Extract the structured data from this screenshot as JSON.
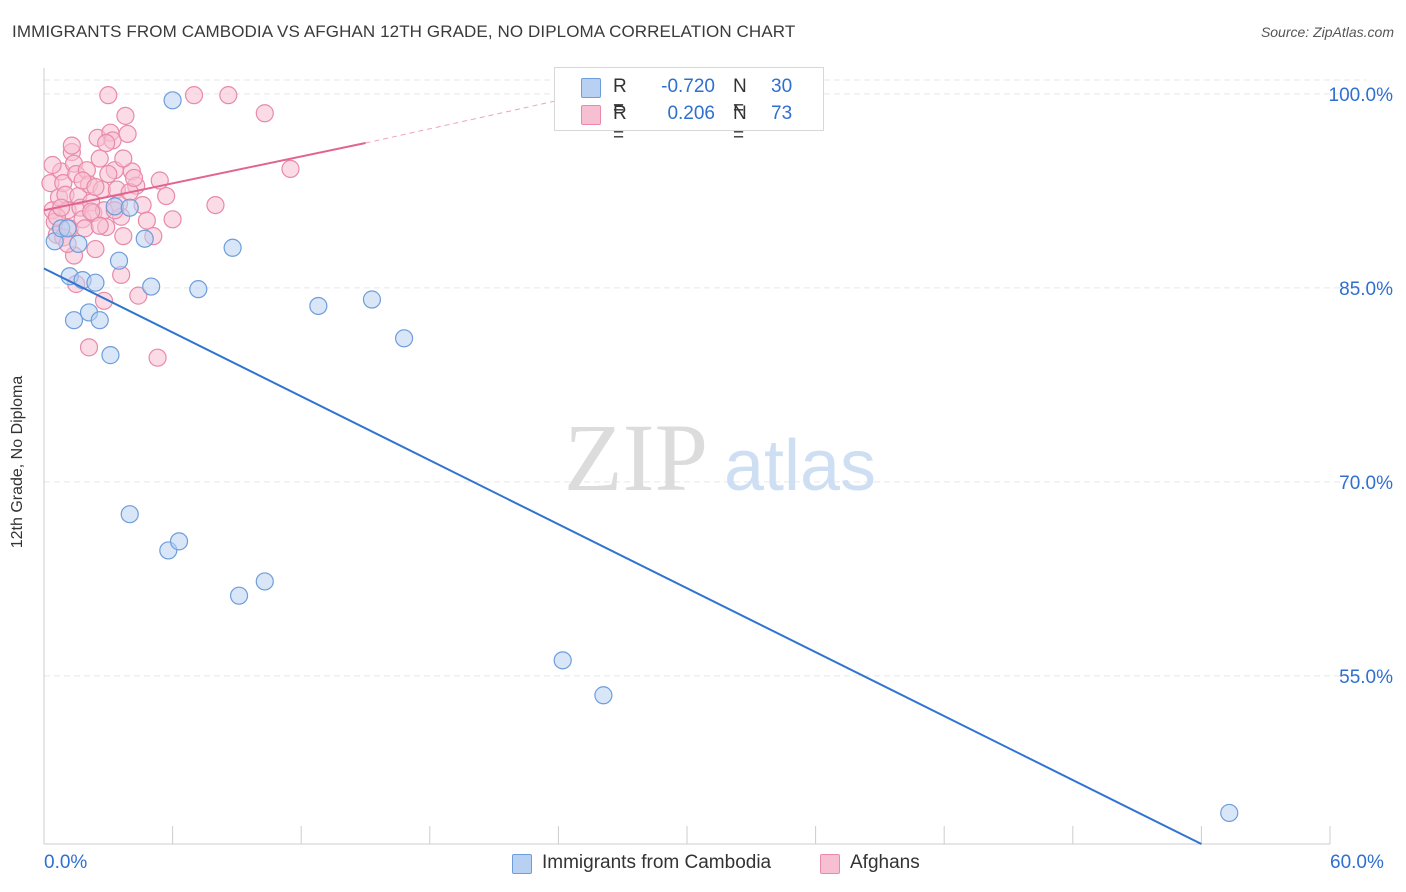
{
  "title": "IMMIGRANTS FROM CAMBODIA VS AFGHAN 12TH GRADE, NO DIPLOMA CORRELATION CHART",
  "source": "Source: ZipAtlas.com",
  "watermark": {
    "zip": "ZIP",
    "atlas": "atlas"
  },
  "colors": {
    "blue_fill": "#b8d1f3",
    "blue_stroke": "#6e9ddb",
    "blue_line": "#2f74d0",
    "pink_fill": "#f7c0d2",
    "pink_stroke": "#e88aa8",
    "pink_line": "#e0668f",
    "tick_label": "#2f6fd0",
    "grid": "#e6e6e6"
  },
  "legend": [
    {
      "r_label": "R =",
      "r_value": "-0.720",
      "n_label": "N =",
      "n_value": "30"
    },
    {
      "r_label": "R =",
      "r_value": "0.206",
      "n_label": "N =",
      "n_value": "73"
    }
  ],
  "chart_data": {
    "type": "scatter",
    "title": "IMMIGRANTS FROM CAMBODIA VS AFGHAN 12TH GRADE, NO DIPLOMA CORRELATION CHART",
    "xlabel": "",
    "ylabel": "12th Grade, No Diploma",
    "xlim": [
      0,
      60
    ],
    "ylim": [
      42,
      102
    ],
    "x_tick_labels": [
      "0.0%",
      "60.0%"
    ],
    "y_ticks": [
      55,
      70,
      85,
      100
    ],
    "y_tick_labels": [
      "55.0%",
      "70.0%",
      "85.0%",
      "100.0%"
    ],
    "grid": true,
    "legend_placement": "bottom-center",
    "series": [
      {
        "name": "Immigrants from Cambodia",
        "color": "#b8d1f3",
        "trend": {
          "x": [
            0,
            54
          ],
          "y": [
            86.5,
            42
          ],
          "style": "solid"
        },
        "points": [
          [
            0.5,
            88.6
          ],
          [
            0.8,
            89.6
          ],
          [
            1.1,
            89.6
          ],
          [
            1.2,
            85.9
          ],
          [
            1.4,
            82.5
          ],
          [
            1.6,
            88.4
          ],
          [
            1.8,
            85.6
          ],
          [
            2.1,
            83.1
          ],
          [
            2.4,
            85.4
          ],
          [
            2.6,
            82.5
          ],
          [
            3.1,
            79.8
          ],
          [
            3.3,
            91.3
          ],
          [
            3.5,
            87.1
          ],
          [
            4.0,
            91.2
          ],
          [
            4.7,
            88.8
          ],
          [
            5.0,
            85.1
          ],
          [
            6.0,
            99.5
          ],
          [
            7.2,
            84.9
          ],
          [
            8.8,
            88.1
          ],
          [
            12.8,
            83.6
          ],
          [
            15.3,
            84.1
          ],
          [
            16.8,
            81.1
          ],
          [
            4.0,
            67.5
          ],
          [
            5.8,
            64.7
          ],
          [
            6.3,
            65.4
          ],
          [
            9.1,
            61.2
          ],
          [
            10.3,
            62.3
          ],
          [
            24.2,
            56.2
          ],
          [
            26.1,
            53.5
          ],
          [
            55.3,
            44.4
          ]
        ]
      },
      {
        "name": "Afghans",
        "color": "#f7c0d2",
        "trend": {
          "x": [
            0,
            15
          ],
          "y": [
            91.0,
            96.2
          ],
          "style": "solid",
          "dashed_extension_to": [
            24,
            99.5
          ]
        },
        "points": [
          [
            0.3,
            93.1
          ],
          [
            0.4,
            91.0
          ],
          [
            0.5,
            90.1
          ],
          [
            0.6,
            89.1
          ],
          [
            0.7,
            92.0
          ],
          [
            0.8,
            94.0
          ],
          [
            0.9,
            93.1
          ],
          [
            1.0,
            92.2
          ],
          [
            1.1,
            91.0
          ],
          [
            1.2,
            89.6
          ],
          [
            1.3,
            95.5
          ],
          [
            1.4,
            94.6
          ],
          [
            1.5,
            93.8
          ],
          [
            1.6,
            92.1
          ],
          [
            1.7,
            91.2
          ],
          [
            1.8,
            90.3
          ],
          [
            1.9,
            89.6
          ],
          [
            2.0,
            94.1
          ],
          [
            2.1,
            93.0
          ],
          [
            2.2,
            91.6
          ],
          [
            2.3,
            90.8
          ],
          [
            2.4,
            88.0
          ],
          [
            2.5,
            96.6
          ],
          [
            2.6,
            95.0
          ],
          [
            2.7,
            92.6
          ],
          [
            2.8,
            91.0
          ],
          [
            2.9,
            89.7
          ],
          [
            3.0,
            99.9
          ],
          [
            3.1,
            97.0
          ],
          [
            3.2,
            96.4
          ],
          [
            3.3,
            94.1
          ],
          [
            3.4,
            92.6
          ],
          [
            3.5,
            91.5
          ],
          [
            3.6,
            90.5
          ],
          [
            3.7,
            89.0
          ],
          [
            3.8,
            98.3
          ],
          [
            3.9,
            96.9
          ],
          [
            4.1,
            94.0
          ],
          [
            4.3,
            92.9
          ],
          [
            4.6,
            91.4
          ],
          [
            4.8,
            90.2
          ],
          [
            5.1,
            89.0
          ],
          [
            5.4,
            93.3
          ],
          [
            5.7,
            92.1
          ],
          [
            6.0,
            90.3
          ],
          [
            7.0,
            99.9
          ],
          [
            8.0,
            91.4
          ],
          [
            8.6,
            99.9
          ],
          [
            10.3,
            98.5
          ],
          [
            11.5,
            94.2
          ],
          [
            1.5,
            85.3
          ],
          [
            2.1,
            80.4
          ],
          [
            2.8,
            84.0
          ],
          [
            3.6,
            86.0
          ],
          [
            4.4,
            84.4
          ],
          [
            5.3,
            79.6
          ],
          [
            0.9,
            88.9
          ],
          [
            1.4,
            87.5
          ],
          [
            2.2,
            90.9
          ],
          [
            2.6,
            89.8
          ],
          [
            3.3,
            91.0
          ],
          [
            4.0,
            92.4
          ],
          [
            1.1,
            88.4
          ],
          [
            0.6,
            90.5
          ],
          [
            0.8,
            91.2
          ],
          [
            1.8,
            93.3
          ],
          [
            2.4,
            92.8
          ],
          [
            3.0,
            93.8
          ],
          [
            3.7,
            95.0
          ],
          [
            4.2,
            93.5
          ],
          [
            1.3,
            96.0
          ],
          [
            2.9,
            96.2
          ],
          [
            0.4,
            94.5
          ]
        ]
      }
    ]
  }
}
